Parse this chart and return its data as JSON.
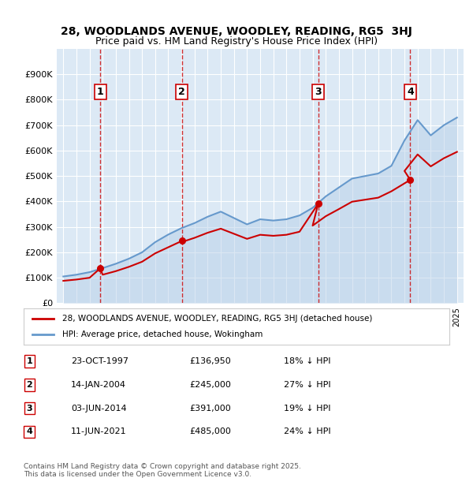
{
  "title_line1": "28, WOODLANDS AVENUE, WOODLEY, READING, RG5  3HJ",
  "title_line2": "Price paid vs. HM Land Registry's House Price Index (HPI)",
  "background_color": "#dce9f5",
  "plot_bg_color": "#dce9f5",
  "grid_color": "#ffffff",
  "red_line_color": "#cc0000",
  "blue_line_color": "#6699cc",
  "hpi_fill_color": "#b8d0e8",
  "ylim": [
    0,
    1000000
  ],
  "yticks": [
    0,
    100000,
    200000,
    300000,
    400000,
    500000,
    600000,
    700000,
    800000,
    900000
  ],
  "ytick_labels": [
    "£0",
    "£100K",
    "£200K",
    "£300K",
    "£400K",
    "£500K",
    "£600K",
    "£700K",
    "£800K",
    "£900K"
  ],
  "sale_dates": [
    1997.81,
    2004.04,
    2014.42,
    2021.44
  ],
  "sale_prices": [
    136950,
    245000,
    391000,
    485000
  ],
  "sale_numbers": [
    "1",
    "2",
    "3",
    "4"
  ],
  "vline_dates": [
    1997.81,
    2004.04,
    2014.42,
    2021.44
  ],
  "legend_line1": "28, WOODLANDS AVENUE, WOODLEY, READING, RG5 3HJ (detached house)",
  "legend_line2": "HPI: Average price, detached house, Wokingham",
  "table_rows": [
    [
      "1",
      "23-OCT-1997",
      "£136,950",
      "18% ↓ HPI"
    ],
    [
      "2",
      "14-JAN-2004",
      "£245,000",
      "27% ↓ HPI"
    ],
    [
      "3",
      "03-JUN-2014",
      "£391,000",
      "19% ↓ HPI"
    ],
    [
      "4",
      "11-JUN-2021",
      "£485,000",
      "24% ↓ HPI"
    ]
  ],
  "footer": "Contains HM Land Registry data © Crown copyright and database right 2025.\nThis data is licensed under the Open Government Licence v3.0.",
  "hpi_years": [
    1995,
    1996,
    1997,
    1998,
    1999,
    2000,
    2001,
    2002,
    2003,
    2004,
    2005,
    2006,
    2007,
    2008,
    2009,
    2010,
    2011,
    2012,
    2013,
    2014,
    2015,
    2016,
    2017,
    2018,
    2019,
    2020,
    2021,
    2022,
    2023,
    2024,
    2025
  ],
  "hpi_values": [
    105000,
    112000,
    122000,
    138000,
    155000,
    175000,
    200000,
    240000,
    270000,
    295000,
    315000,
    340000,
    360000,
    335000,
    310000,
    330000,
    325000,
    330000,
    345000,
    375000,
    420000,
    455000,
    490000,
    500000,
    510000,
    540000,
    640000,
    720000,
    660000,
    700000,
    730000
  ],
  "red_years": [
    1995,
    1996,
    1997,
    1997.81,
    1998,
    1999,
    2000,
    2001,
    2002,
    2003,
    2004.04,
    2004,
    2005,
    2006,
    2007,
    2008,
    2009,
    2010,
    2011,
    2012,
    2013,
    2014.42,
    2014,
    2015,
    2016,
    2017,
    2018,
    2019,
    2020,
    2021.44,
    2021,
    2022,
    2023,
    2024,
    2025
  ],
  "red_values": [
    88000,
    93000,
    100000,
    136950,
    112000,
    126000,
    143000,
    163000,
    196000,
    220000,
    245000,
    240000,
    257000,
    277000,
    293000,
    273000,
    253000,
    269000,
    265000,
    269000,
    281000,
    391000,
    305000,
    342000,
    370000,
    399000,
    407000,
    415000,
    440000,
    485000,
    520000,
    585000,
    538000,
    570000,
    595000
  ]
}
